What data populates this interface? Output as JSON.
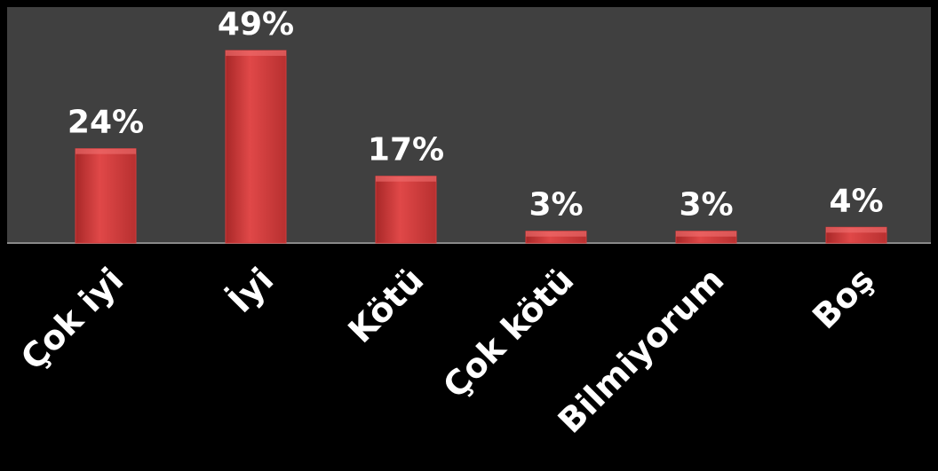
{
  "chart_data": {
    "type": "bar",
    "categories": [
      "Çok iyi",
      "İyi",
      "Kötü",
      "Çok kötü",
      "Bilmiyorum",
      "Boş"
    ],
    "values": [
      24,
      49,
      17,
      3,
      3,
      4
    ],
    "value_labels": [
      "24%",
      "49%",
      "17%",
      "3%",
      "3%",
      "4%"
    ],
    "color": "#d43c3c"
  }
}
